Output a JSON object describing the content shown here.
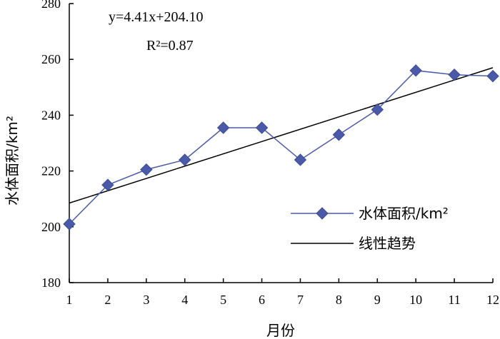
{
  "chart_data": {
    "type": "line",
    "xlabel": "月份",
    "ylabel": "水体面积/km²",
    "x": [
      1,
      2,
      3,
      4,
      5,
      6,
      7,
      8,
      9,
      10,
      11,
      12
    ],
    "xticks": [
      "1",
      "2",
      "3",
      "4",
      "5",
      "6",
      "7",
      "8",
      "9",
      "10",
      "11",
      "12"
    ],
    "ylim": [
      180,
      280
    ],
    "yticks": [
      "180",
      "200",
      "220",
      "240",
      "260",
      "280"
    ],
    "series": [
      {
        "name": "水体面积/km²",
        "values": [
          201,
          215,
          220.5,
          224,
          235.5,
          235.5,
          224,
          233,
          242,
          256,
          254.5,
          254
        ],
        "color": "#4a5aa8",
        "marker": "diamond"
      },
      {
        "name": "线性趋势",
        "slope": 4.41,
        "intercept": 204.1,
        "color": "#000000"
      }
    ],
    "annotations": {
      "equation": "y=4.41x+204.10",
      "r2": "R²=0.87"
    },
    "legend_position": "right-middle",
    "grid": false
  }
}
